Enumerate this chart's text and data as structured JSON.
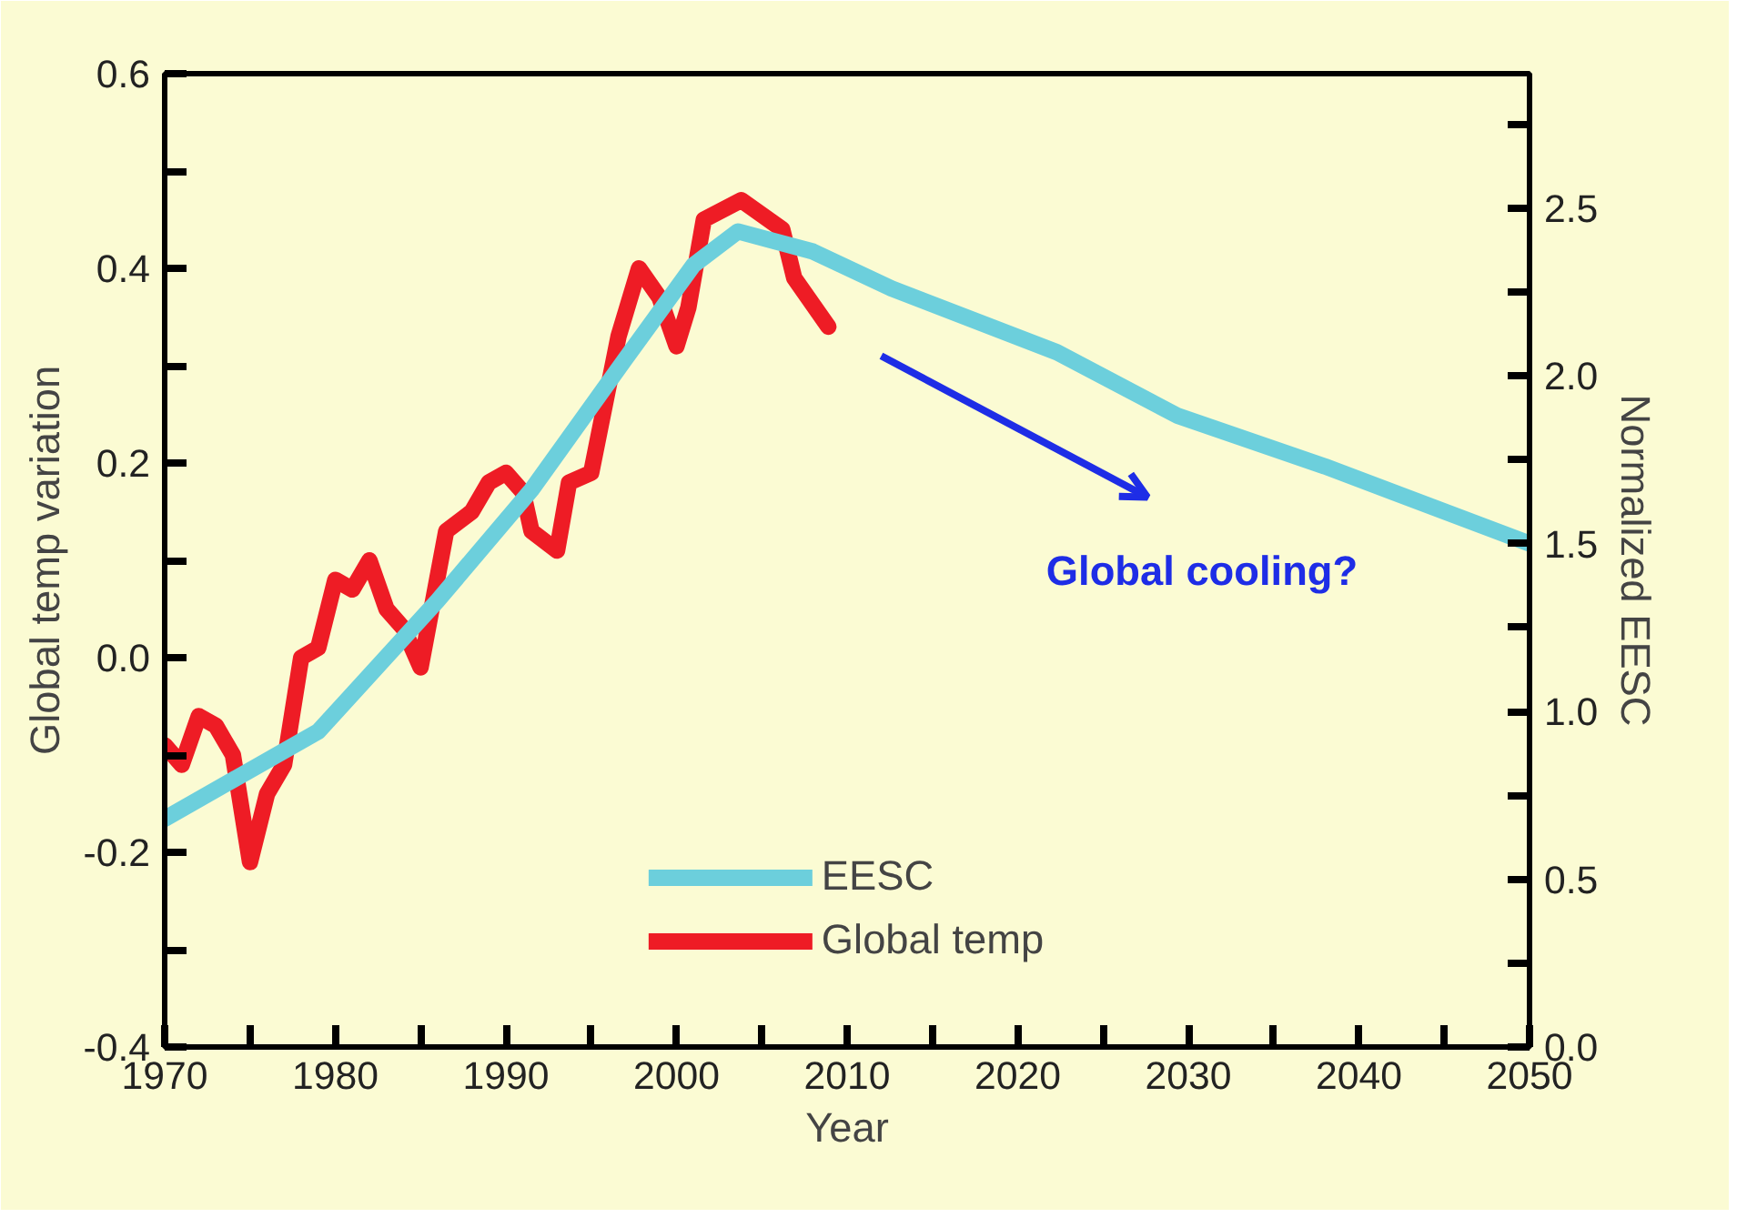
{
  "chart_data": {
    "type": "line",
    "xlabel": "Year",
    "ylabel": "Global temp variation",
    "y2label": "Normalized EESC",
    "xlim": [
      1970,
      2050
    ],
    "xticks": [
      1970,
      {
        "value": 1975,
        "label": null
      },
      1980,
      {
        "value": 1985,
        "label": null
      },
      1990,
      {
        "value": 1995,
        "label": null
      },
      2000,
      {
        "value": 2005,
        "label": null
      },
      2010,
      {
        "value": 2015,
        "label": null
      },
      2020,
      {
        "value": 2025,
        "label": null
      },
      2030,
      {
        "value": 2035,
        "label": null
      },
      2040,
      {
        "value": 2045,
        "label": null
      },
      2050
    ],
    "ylim": [
      -0.4,
      0.6
    ],
    "yticks": [
      {
        "value": -0.4,
        "label": "-0.4"
      },
      {
        "value": -0.3,
        "label": null
      },
      {
        "value": -0.2,
        "label": "-0.2"
      },
      {
        "value": -0.1,
        "label": null
      },
      {
        "value": 0,
        "label": "0.0"
      },
      {
        "value": 0.1,
        "label": null
      },
      {
        "value": 0.2,
        "label": "0.2"
      },
      {
        "value": 0.3,
        "label": null
      },
      {
        "value": 0.4,
        "label": "0.4"
      },
      {
        "value": 0.5,
        "label": null
      },
      {
        "value": 0.6,
        "label": "0.6"
      }
    ],
    "y2lim": [
      0,
      2.9
    ],
    "y2ticks": [
      {
        "value": 0,
        "label": "0.0"
      },
      {
        "value": 0.25,
        "label": null
      },
      {
        "value": 0.5,
        "label": "0.5"
      },
      {
        "value": 0.75,
        "label": null
      },
      {
        "value": 1,
        "label": "1.0"
      },
      {
        "value": 1.25,
        "label": null
      },
      {
        "value": 1.5,
        "label": "1.5"
      },
      {
        "value": 1.75,
        "label": null
      },
      {
        "value": 2,
        "label": "2.0"
      },
      {
        "value": 2.25,
        "label": null
      },
      {
        "value": 2.5,
        "label": "2.5"
      },
      {
        "value": 2.75,
        "label": null
      }
    ],
    "series": [
      {
        "name": "EESC",
        "color": "#6ccfdc",
        "axis": "y2",
        "x": [
          1970,
          1979,
          1986,
          1991.5,
          1997,
          2001,
          2003.6,
          2008,
          2012.6,
          2022.3,
          2029.4,
          2038,
          2050
        ],
        "values": [
          0.68,
          0.94,
          1.33,
          1.66,
          2.05,
          2.33,
          2.43,
          2.37,
          2.26,
          2.07,
          1.88,
          1.73,
          1.5
        ]
      },
      {
        "name": "Global temp",
        "color": "#ee1c25",
        "x": [
          1970,
          1971,
          1972,
          1973,
          1974,
          1975,
          1976,
          1977,
          1978,
          1979,
          1980,
          1981,
          1982,
          1983,
          1984,
          1985,
          1986.5,
          1988,
          1989,
          1990,
          1991,
          1991.5,
          1993,
          1993.7,
          1995,
          1996.6,
          1997.8,
          1999,
          2000,
          2000.7,
          2001.6,
          2003.8,
          2006.2,
          2006.9,
          2008.9
        ],
        "values": [
          -0.09,
          -0.11,
          -0.06,
          -0.07,
          -0.1,
          -0.21,
          -0.14,
          -0.11,
          0.0,
          0.01,
          0.08,
          0.07,
          0.1,
          0.05,
          0.03,
          -0.01,
          0.13,
          0.15,
          0.18,
          0.19,
          0.17,
          0.13,
          0.11,
          0.18,
          0.19,
          0.33,
          0.4,
          0.37,
          0.32,
          0.36,
          0.45,
          0.47,
          0.44,
          0.39,
          0.34
        ]
      }
    ],
    "annotations": [
      "Global cooling?"
    ],
    "legend": "bottom",
    "grid": false,
    "line_style": "solid",
    "marker": "none"
  }
}
